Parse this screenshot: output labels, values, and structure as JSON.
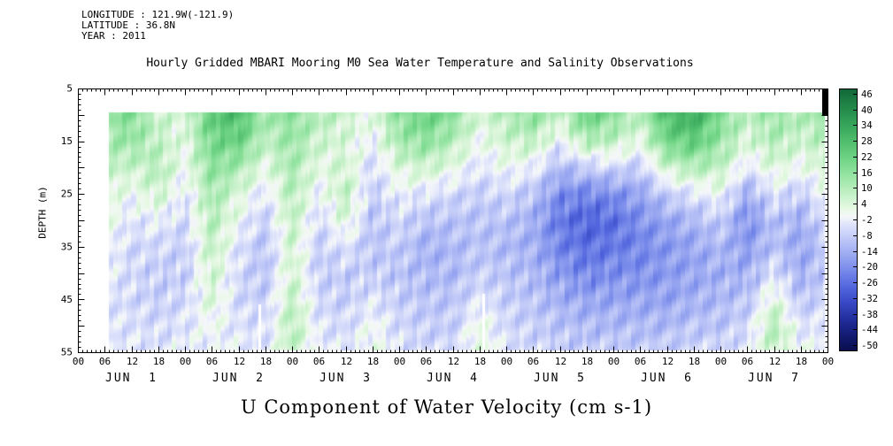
{
  "page": {
    "background": "#ffffff"
  },
  "header": {
    "line1": "LONGITUDE : 121.9W(-121.9)",
    "line2": "LATITUDE : 36.8N",
    "line3": "YEAR : 2011"
  },
  "title": "Hourly Gridded MBARI Mooring M0 Sea Water Temperature and Salinity Observations",
  "bottom_title": "U Component of Water Velocity (cm s-1)",
  "chart_data": {
    "type": "heatmap",
    "title": "Hourly Gridded MBARI Mooring M0 Sea Water Temperature and Salinity Observations",
    "xlabel": "U Component of Water Velocity (cm s-1)",
    "ylabel": "DEPTH (m)",
    "x_axis": {
      "unit": "hours from JUN 1 00:00 2011",
      "range_hours": [
        0,
        168
      ],
      "tick_step_hours": 6,
      "minor_tick_step_hours": 1,
      "hour_label_cycle": [
        "00",
        "06",
        "12",
        "18"
      ],
      "day_labels": [
        "JUN  1",
        "JUN  2",
        "JUN  3",
        "JUN  4",
        "JUN  5",
        "JUN  6",
        "JUN  7"
      ]
    },
    "y_axis": {
      "unit": "m",
      "range": [
        5,
        55
      ],
      "tick_step": 5,
      "minor_tick_step": 1,
      "labeled_ticks": [
        5,
        15,
        25,
        35,
        45,
        55
      ]
    },
    "colorbar": {
      "unit": "cm s-1",
      "ticks": [
        46,
        40,
        34,
        28,
        22,
        16,
        10,
        4,
        -2,
        -8,
        -14,
        -20,
        -26,
        -32,
        -38,
        -44,
        -50
      ],
      "value_range": [
        48,
        -52
      ],
      "palette_stops": [
        [
          50,
          "#0d5c30"
        ],
        [
          44,
          "#1b7a42"
        ],
        [
          38,
          "#2a9451"
        ],
        [
          32,
          "#3fae60"
        ],
        [
          26,
          "#58c473"
        ],
        [
          20,
          "#77d88b"
        ],
        [
          14,
          "#9ce6a8"
        ],
        [
          8,
          "#c2f0c6"
        ],
        [
          2,
          "#e9f9e6"
        ],
        [
          -1,
          "#f5f7fa"
        ],
        [
          -4,
          "#dfe4fb"
        ],
        [
          -10,
          "#bcc5f7"
        ],
        [
          -16,
          "#99a7f1"
        ],
        [
          -22,
          "#7487e9"
        ],
        [
          -28,
          "#5265dd"
        ],
        [
          -34,
          "#3848c4"
        ],
        [
          -40,
          "#232f9e"
        ],
        [
          -46,
          "#131c74"
        ],
        [
          -52,
          "#0a0e4e"
        ]
      ]
    },
    "grid": {
      "comment": "estimated u-velocity (cm/s); columns every 6h from JUN 1 00:00, each column lists values at depths[]",
      "time_hours_start": 0,
      "time_hours_step": 6,
      "depths": [
        10,
        15,
        20,
        25,
        30,
        35,
        40,
        45,
        50,
        55
      ],
      "data_start_hour": 7,
      "data_end_hour": 167.5,
      "data_top_depth": 9.5,
      "data_bottom_depth": 54.6,
      "columns": [
        [
          14,
          12,
          8,
          4,
          2,
          0,
          -2,
          -4,
          -4,
          -6
        ],
        [
          14,
          12,
          8,
          4,
          2,
          0,
          -2,
          -4,
          -4,
          -6
        ],
        [
          18,
          14,
          6,
          0,
          -4,
          -6,
          -6,
          -6,
          -4,
          -4
        ],
        [
          6,
          8,
          10,
          6,
          -2,
          -6,
          -8,
          -8,
          -6,
          -4
        ],
        [
          4,
          2,
          0,
          -4,
          -6,
          -8,
          -8,
          -6,
          -4,
          -2
        ],
        [
          24,
          20,
          16,
          12,
          10,
          8,
          6,
          4,
          0,
          -2
        ],
        [
          28,
          22,
          12,
          4,
          0,
          -4,
          -6,
          -6,
          -4,
          -2
        ],
        [
          12,
          8,
          2,
          -4,
          -8,
          -10,
          -10,
          -8,
          -6,
          -4
        ],
        [
          16,
          14,
          12,
          10,
          8,
          6,
          6,
          8,
          10,
          8
        ],
        [
          10,
          6,
          2,
          -2,
          -6,
          -8,
          -8,
          -6,
          -4,
          -2
        ],
        [
          6,
          4,
          6,
          8,
          4,
          -4,
          -8,
          -8,
          -6,
          -4
        ],
        [
          2,
          -2,
          -6,
          -8,
          -10,
          -10,
          -8,
          -4,
          0,
          2
        ],
        [
          16,
          12,
          4,
          -2,
          -6,
          -8,
          -10,
          -8,
          -6,
          -4
        ],
        [
          22,
          16,
          6,
          -4,
          -10,
          -14,
          -12,
          -10,
          -8,
          -6
        ],
        [
          16,
          10,
          2,
          -6,
          -10,
          -12,
          -12,
          -10,
          -8,
          -6
        ],
        [
          4,
          0,
          -4,
          -8,
          -10,
          -10,
          -8,
          -4,
          2,
          4
        ],
        [
          10,
          6,
          0,
          -6,
          -10,
          -12,
          -10,
          -8,
          -6,
          -4
        ],
        [
          16,
          8,
          -2,
          -10,
          -14,
          -14,
          -12,
          -10,
          -8,
          -6
        ],
        [
          6,
          -2,
          -12,
          -20,
          -24,
          -22,
          -18,
          -14,
          -10,
          -8
        ],
        [
          22,
          10,
          -8,
          -22,
          -28,
          -26,
          -22,
          -16,
          -12,
          -8
        ],
        [
          16,
          8,
          -6,
          -20,
          -26,
          -24,
          -20,
          -16,
          -12,
          -8
        ],
        [
          8,
          2,
          -8,
          -16,
          -20,
          -22,
          -20,
          -16,
          -12,
          -8
        ],
        [
          28,
          20,
          6,
          -8,
          -16,
          -18,
          -18,
          -16,
          -12,
          -8
        ],
        [
          32,
          24,
          10,
          -4,
          -12,
          -16,
          -16,
          -14,
          -10,
          -6
        ],
        [
          18,
          14,
          8,
          0,
          -8,
          -12,
          -14,
          -12,
          -10,
          -6
        ],
        [
          8,
          4,
          -4,
          -14,
          -20,
          -18,
          -14,
          -10,
          -6,
          -4
        ],
        [
          14,
          10,
          4,
          -4,
          -10,
          -10,
          -4,
          4,
          10,
          8
        ],
        [
          10,
          6,
          0,
          -8,
          -14,
          -16,
          -14,
          -10,
          -4,
          0
        ],
        [
          14,
          10,
          6,
          0,
          -4,
          -8,
          -8,
          -6,
          -4,
          -2
        ]
      ],
      "missing_strips": [
        {
          "hour": 40.7,
          "depth_from": 46
        },
        {
          "hour": 91.0,
          "depth_from": 44
        }
      ]
    }
  }
}
